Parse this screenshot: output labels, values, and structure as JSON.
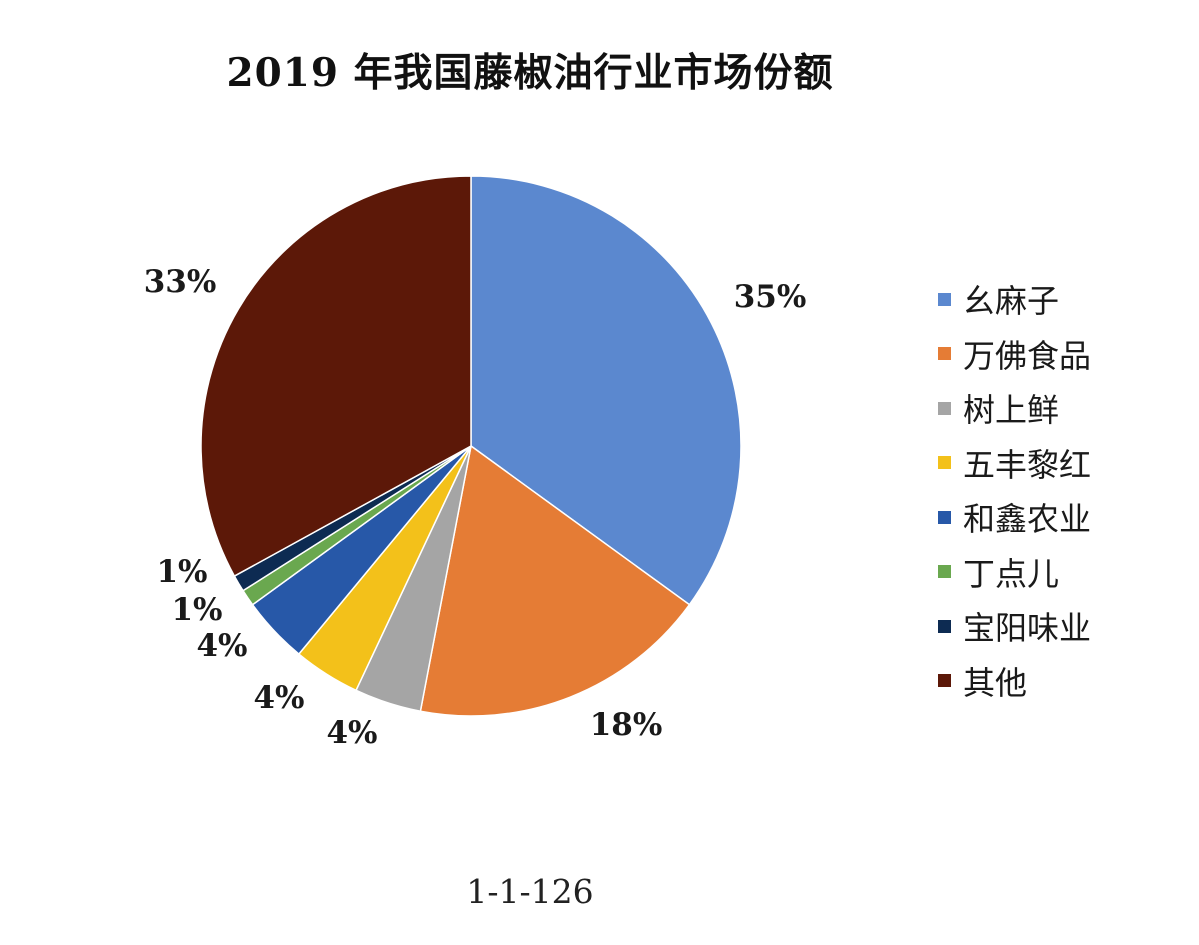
{
  "chart_data": {
    "type": "pie",
    "title": "2019 年我国藤椒油行业市场份额",
    "categories": [
      "幺麻子",
      "万佛食品",
      "树上鲜",
      "五丰黎红",
      "和鑫农业",
      "丁点儿",
      "宝阳味业",
      "其他"
    ],
    "values": [
      35,
      18,
      4,
      4,
      4,
      1,
      1,
      33
    ],
    "labels": [
      "35%",
      "18%",
      "4%",
      "4%",
      "4%",
      "1%",
      "1%",
      "33%"
    ],
    "colors": [
      "#5b88cf",
      "#e57c35",
      "#a5a5a5",
      "#f3c11a",
      "#2758a8",
      "#6aa84f",
      "#0d2b52",
      "#5c1808"
    ],
    "legend_position": "right",
    "start_angle_deg": 0,
    "direction": "clockwise"
  },
  "page_number": "1-1-126"
}
